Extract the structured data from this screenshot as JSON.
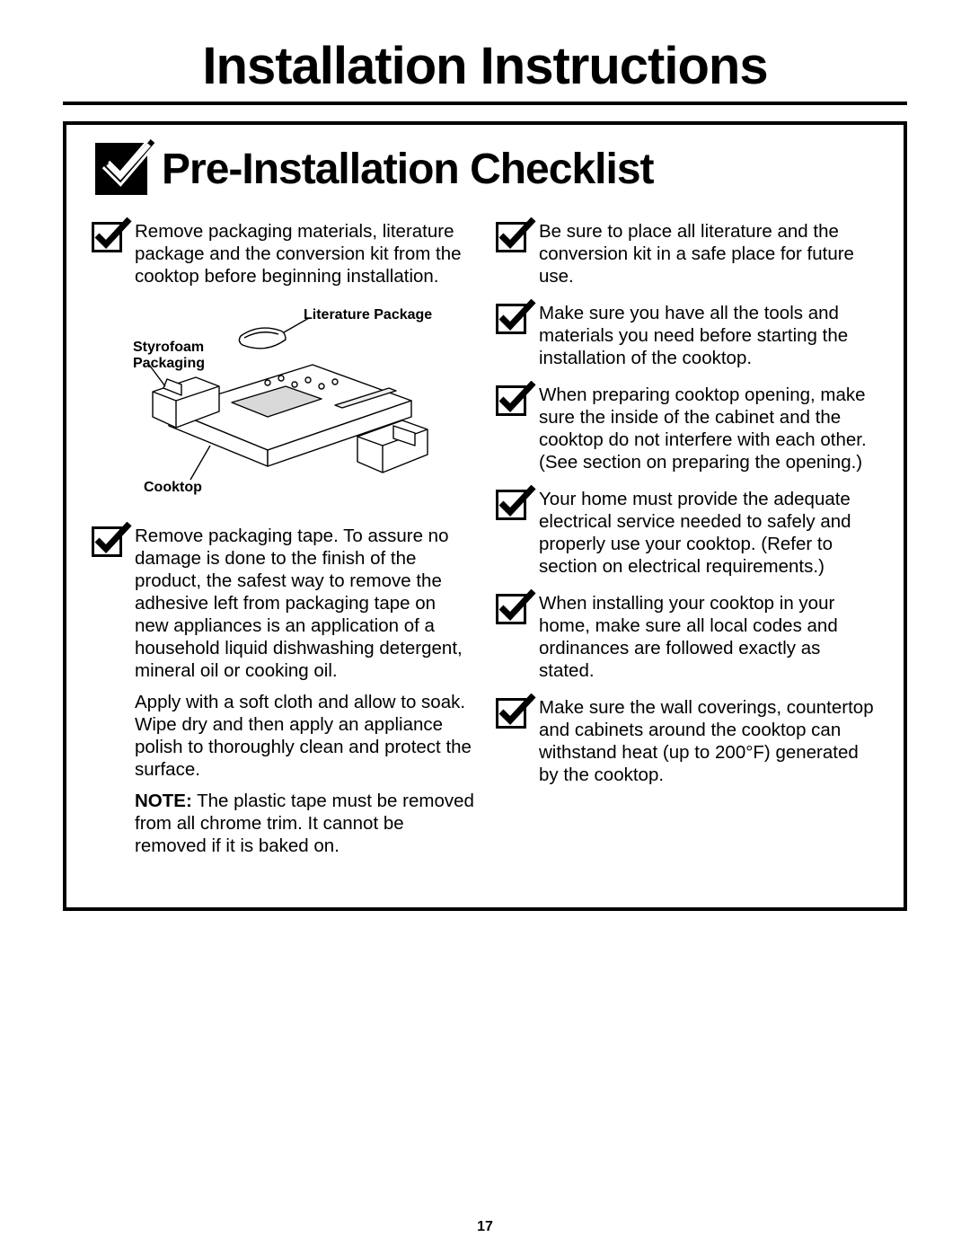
{
  "title": "Installation Instructions",
  "subtitle": "Pre-Installation Checklist",
  "page_number": "17",
  "diagram_labels": {
    "literature": "Literature Package",
    "styrofoam": "Styrofoam\nPackaging",
    "cooktop": "Cooktop"
  },
  "left_items": [
    {
      "paragraphs": [
        "Remove packaging materials, literature package and the conversion kit from the cooktop before beginning installation."
      ]
    },
    {
      "paragraphs": [
        "Remove packaging tape. To assure no damage is done to the finish of the product, the safest way to remove the adhesive left from packaging tape on new appliances is an application of a household liquid dishwashing detergent, mineral oil or cooking oil.",
        "Apply with a soft cloth and allow to soak. Wipe dry and then apply an appliance polish to thoroughly clean and protect the surface.",
        "<b>NOTE:</b> The plastic tape must be removed from all chrome trim. It cannot be removed if it is baked on."
      ]
    }
  ],
  "right_items": [
    {
      "paragraphs": [
        "Be sure to place all literature and the conversion kit in a safe place for future use."
      ]
    },
    {
      "paragraphs": [
        "Make sure you have all the tools and materials you need before starting the installation of the cooktop."
      ]
    },
    {
      "paragraphs": [
        "When preparing cooktop opening, make sure the inside of the cabinet and the cooktop do not interfere with each other. (See section on preparing the opening.)"
      ]
    },
    {
      "paragraphs": [
        "Your home must provide the adequate electrical service needed to safely and properly use your cooktop. (Refer to section on electrical requirements.)"
      ]
    },
    {
      "paragraphs": [
        "When installing your cooktop in your home, make sure all local codes and ordinances are followed exactly as stated."
      ]
    },
    {
      "paragraphs": [
        "Make sure the wall coverings, countertop and cabinets around the cooktop can withstand heat (up to 200°F) generated by the cooktop."
      ]
    }
  ]
}
